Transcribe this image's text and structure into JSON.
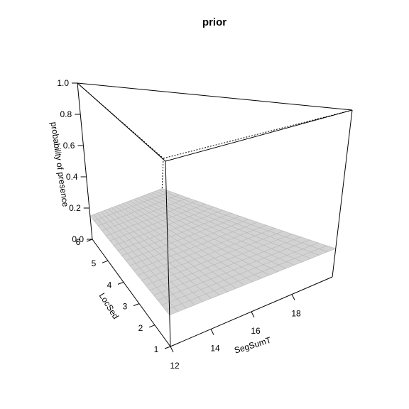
{
  "chart_data": {
    "type": "surface3d",
    "title": "prior",
    "x_axis": {
      "label": "SegSumT",
      "range": [
        12,
        20
      ],
      "ticks": [
        "12",
        "14",
        "16",
        "18"
      ],
      "tick_values": [
        12,
        14,
        16,
        18
      ]
    },
    "y_axis": {
      "label": "LocSed",
      "range": [
        1,
        6
      ],
      "ticks": [
        "1",
        "2",
        "3",
        "4",
        "5",
        "6"
      ],
      "tick_values": [
        1,
        2,
        3,
        4,
        5,
        6
      ]
    },
    "z_axis": {
      "label": "probability of presence",
      "range": [
        0,
        1
      ],
      "ticks": [
        "0.0",
        "0.2",
        "0.4",
        "0.6",
        "0.8",
        "1.0"
      ],
      "tick_values": [
        0,
        0.2,
        0.4,
        0.6,
        0.8,
        1.0
      ]
    },
    "surface": {
      "grid_n": 20,
      "corner_values": {
        "x12_y1": 0.17,
        "x20_y1": 0.17,
        "x12_y6": 0.15,
        "x20_y6": 0.15
      },
      "fill_color": "#d3d3d3",
      "edge_color": "#b9b9b9"
    },
    "box": true,
    "background": "#ffffff"
  }
}
